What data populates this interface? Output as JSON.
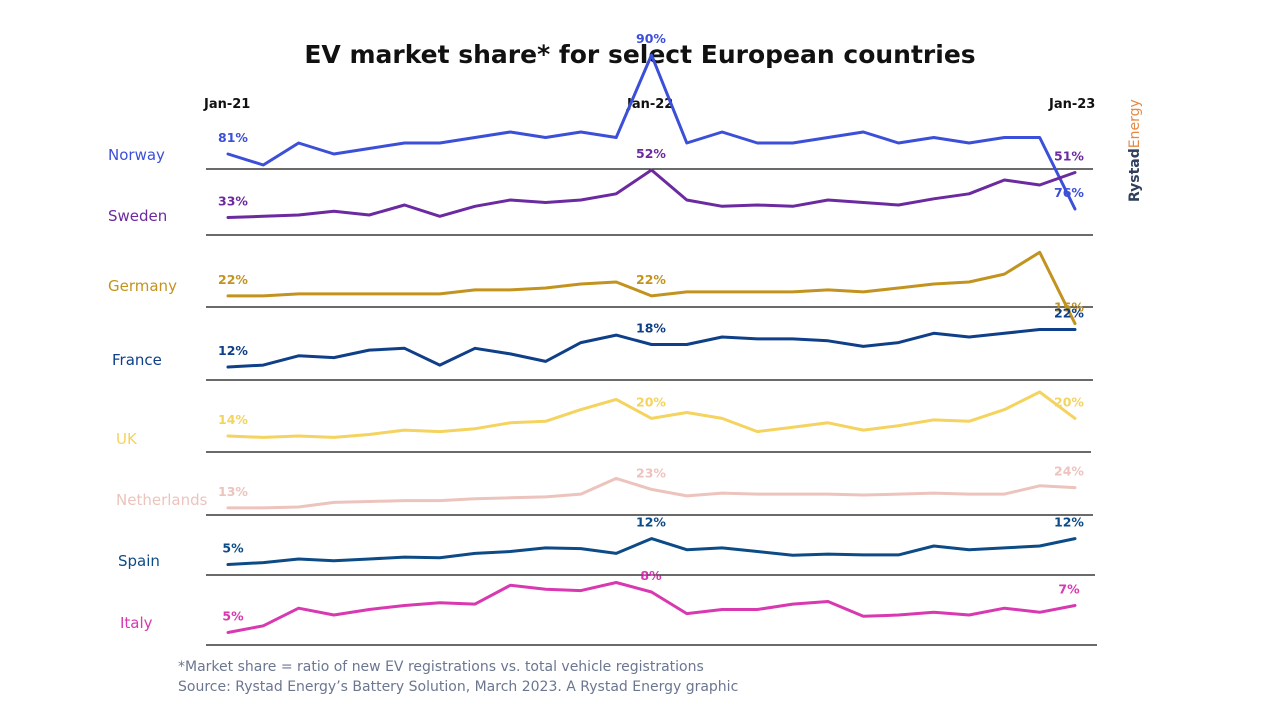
{
  "title": "EV market share* for select European countries",
  "period_labels": {
    "start": "Jan-21",
    "mid": "Jan-22",
    "end": "Jan-23"
  },
  "brand": {
    "part1": "Rystad",
    "part2": "Energy"
  },
  "footnote": "*Market share = ratio of new EV registrations vs. total vehicle registrations",
  "source": "Source: Rystad Energy’s Battery Solution, March 2023. A Rystad Energy graphic",
  "chart_data": {
    "type": "line",
    "title": "EV market share* for select European countries",
    "x_start": "Jan-21",
    "x_end": "Jan-23",
    "x_tick_labels": [
      "Jan-21",
      "Jan-22",
      "Jan-23"
    ],
    "unit": "%",
    "series": [
      {
        "name": "Norway",
        "color": "#3b4fd8",
        "labels": [
          "81%",
          "90%",
          "76%"
        ],
        "values": [
          81,
          80,
          82,
          81,
          81.5,
          82,
          82,
          82.5,
          83,
          82.5,
          83,
          82.5,
          90,
          82,
          83,
          82,
          82,
          82.5,
          83,
          82,
          82.5,
          82,
          82.5,
          82.5,
          76
        ]
      },
      {
        "name": "Sweden",
        "color": "#6b2aa0",
        "labels": [
          "33%",
          "52%",
          "51%"
        ],
        "values": [
          33,
          33.5,
          34,
          35.5,
          34,
          38,
          33.5,
          37.5,
          40,
          39,
          40,
          42.5,
          52,
          40,
          37.5,
          38,
          37.5,
          40,
          39,
          38,
          40.5,
          42.5,
          48,
          46,
          51
        ]
      },
      {
        "name": "Germany",
        "color": "#c2941f",
        "labels": [
          "22%",
          "22%",
          "15%"
        ],
        "values": [
          22,
          22,
          22.5,
          22.5,
          22.5,
          22.5,
          22.5,
          23.5,
          23.5,
          24,
          25,
          25.5,
          22,
          23,
          23,
          23,
          23,
          23.5,
          23,
          24,
          25,
          25.5,
          27.5,
          33,
          15
        ]
      },
      {
        "name": "France",
        "color": "#0f3f88",
        "labels": [
          "12%",
          "18%",
          "22%"
        ],
        "values": [
          12,
          12.5,
          15,
          14.5,
          16.5,
          17,
          12.5,
          17,
          15.5,
          13.5,
          18.5,
          20.5,
          18,
          18,
          20,
          19.5,
          19.5,
          19,
          17.5,
          18.5,
          21,
          20,
          21,
          22,
          22
        ]
      },
      {
        "name": "UK",
        "color": "#f4d35e",
        "labels": [
          "14%",
          "20%",
          "20%"
        ],
        "values": [
          14,
          13.5,
          14,
          13.5,
          14.5,
          16,
          15.5,
          16.5,
          18.5,
          19,
          23,
          26.5,
          20,
          22,
          20,
          15.5,
          17,
          18.5,
          16,
          17.5,
          19.5,
          19,
          23,
          29,
          20
        ]
      },
      {
        "name": "Netherlands",
        "color": "#ecc3bd",
        "labels": [
          "13%",
          "23%",
          "24%"
        ],
        "values": [
          13,
          13,
          13.5,
          16,
          16.5,
          17,
          17,
          18,
          18.5,
          19,
          20.5,
          29,
          23,
          19.5,
          21,
          20.5,
          20.5,
          20.5,
          20,
          20.5,
          21,
          20.5,
          20.5,
          25,
          24
        ]
      },
      {
        "name": "Spain",
        "color": "#0d4b86",
        "labels": [
          "5%",
          "12%",
          "12%"
        ],
        "values": [
          5,
          5.5,
          6.5,
          6,
          6.5,
          7,
          6.8,
          8,
          8.5,
          9.5,
          9.3,
          8,
          12,
          9,
          9.5,
          8.5,
          7.5,
          7.8,
          7.6,
          7.6,
          10,
          9,
          9.5,
          10,
          12
        ]
      },
      {
        "name": "Italy",
        "color": "#d838b0",
        "labels": [
          "5%",
          "8%",
          "7%"
        ],
        "values": [
          5,
          5.5,
          6.8,
          6.3,
          6.7,
          7,
          7.2,
          7.1,
          8.5,
          8.2,
          8.1,
          8.7,
          8,
          6.4,
          6.7,
          6.7,
          7.1,
          7.3,
          6.2,
          6.3,
          6.5,
          6.3,
          6.8,
          6.5,
          7
        ]
      }
    ]
  }
}
